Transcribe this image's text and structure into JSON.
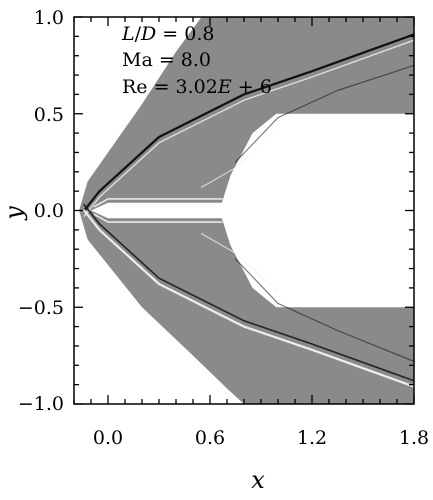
{
  "chart_data": {
    "type": "heatmap",
    "title": "",
    "xlabel": "x",
    "ylabel": "y",
    "xlim": [
      -0.2,
      1.8
    ],
    "ylim": [
      -1.0,
      1.0
    ],
    "x_ticks": [
      "0.0",
      "0.6",
      "1.2",
      "1.8"
    ],
    "x_tick_values": [
      0.0,
      0.6,
      1.2,
      1.8
    ],
    "y_ticks": [
      "1.0",
      "0.5",
      "0.0",
      "−0.5",
      "−1.0"
    ],
    "y_tick_values": [
      1.0,
      0.5,
      0.0,
      -0.5,
      -1.0
    ],
    "grid": false,
    "annotations": {
      "line1_pre": "L",
      "line1_mid": "/",
      "line1_it2": "D",
      "line1_post": " = 0.8",
      "line2": "Ma = 8.0",
      "line3_pre": "Re = 3.02",
      "line3_it": "E",
      "line3_post": " + 6"
    },
    "body_outline_upper": [
      [
        -0.1,
        0.0
      ],
      [
        0.0,
        0.04
      ],
      [
        0.67,
        0.04
      ],
      [
        0.72,
        0.18
      ],
      [
        0.85,
        0.4
      ],
      [
        0.99,
        0.5
      ],
      [
        1.8,
        0.5
      ]
    ],
    "body_outline_lower": [
      [
        -0.1,
        0.0
      ],
      [
        0.0,
        -0.04
      ],
      [
        0.67,
        -0.04
      ],
      [
        0.72,
        -0.18
      ],
      [
        0.85,
        -0.4
      ],
      [
        0.99,
        -0.5
      ],
      [
        1.8,
        -0.5
      ]
    ],
    "field_outer_upper": [
      [
        -0.17,
        0.0
      ],
      [
        -0.12,
        0.15
      ],
      [
        0.2,
        0.55
      ],
      [
        0.4,
        0.82
      ],
      [
        0.55,
        1.0
      ],
      [
        1.8,
        1.0
      ]
    ],
    "field_outer_lower": [
      [
        -0.17,
        0.0
      ],
      [
        -0.12,
        -0.15
      ],
      [
        0.2,
        -0.5
      ],
      [
        0.5,
        -0.75
      ],
      [
        0.7,
        -0.92
      ],
      [
        0.8,
        -1.0
      ]
    ],
    "bow_shock_upper": [
      [
        -0.14,
        0.0
      ],
      [
        -0.05,
        0.1
      ],
      [
        0.3,
        0.38
      ],
      [
        0.8,
        0.6
      ],
      [
        1.2,
        0.72
      ],
      [
        1.8,
        0.91
      ]
    ],
    "bow_shock_lower": [
      [
        -0.14,
        0.0
      ],
      [
        -0.05,
        -0.1
      ],
      [
        0.3,
        -0.38
      ],
      [
        0.8,
        -0.6
      ],
      [
        1.2,
        -0.72
      ],
      [
        1.8,
        -0.91
      ]
    ],
    "colors": {
      "field": "#8a8a8a",
      "shock_dark": "#111111",
      "shock_light": "#f2f2f2",
      "background": "#ffffff"
    }
  }
}
